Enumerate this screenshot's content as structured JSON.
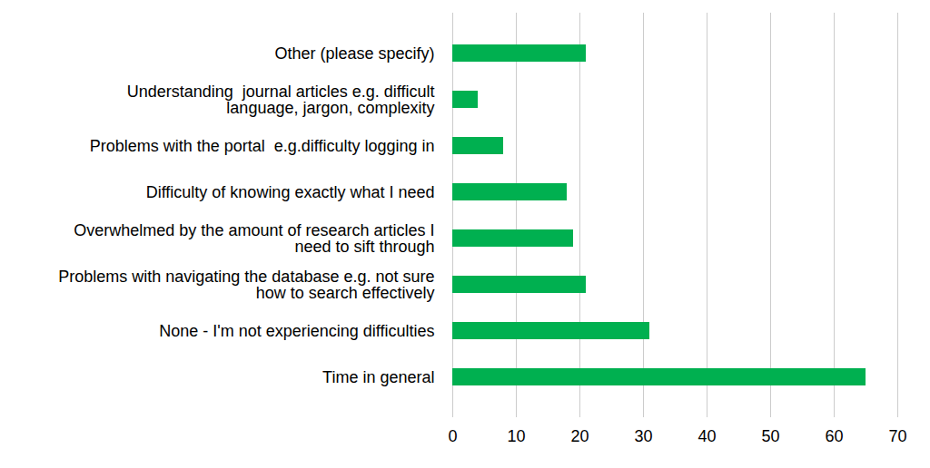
{
  "chart_data": {
    "type": "bar",
    "orientation": "horizontal",
    "categories": [
      "Other (please specify)",
      "Understanding  journal articles e.g. difficult\nlanguage, jargon, complexity",
      "Problems with the portal  e.g.difficulty logging in",
      "Difficulty of knowing exactly what I need",
      "Overwhelmed by the amount of research articles I\nneed to sift through",
      "Problems with navigating the database e.g. not sure\nhow to search effectively",
      "None - I'm not experiencing difficulties",
      "Time in general"
    ],
    "values": [
      21,
      4,
      8,
      18,
      19,
      21,
      31,
      65
    ],
    "color": "#00b050",
    "xlim": [
      0,
      70
    ],
    "xticks": [
      0,
      10,
      20,
      30,
      40,
      50,
      60,
      70
    ],
    "grid": true
  }
}
